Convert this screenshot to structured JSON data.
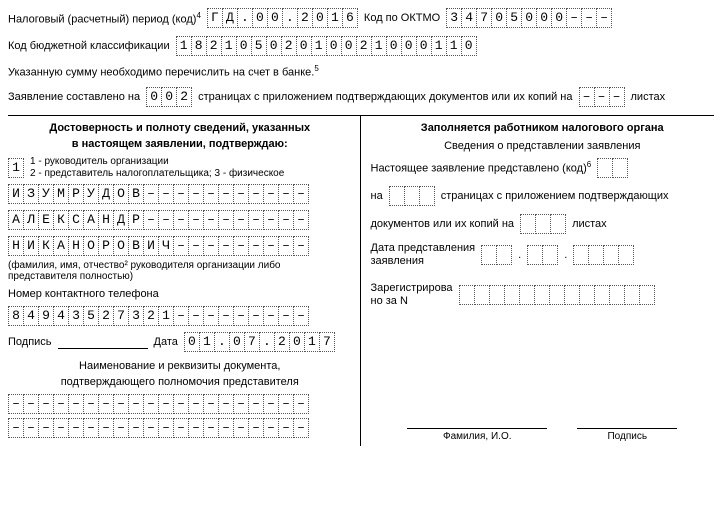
{
  "top": {
    "tax_period_label": "Налоговый (расчетный) период (код)",
    "tax_period_sup": "4",
    "tax_period_cells": [
      "Г",
      "Д",
      ".",
      "0",
      "0",
      ".",
      "2",
      "0",
      "1",
      "6"
    ],
    "oktmo_label": "Код по ОКТМО",
    "oktmo_cells": [
      "3",
      "4",
      "7",
      "0",
      "5",
      "0",
      "0",
      "0",
      "–",
      "–",
      "–"
    ],
    "kbk_label": "Код бюджетной классификации",
    "kbk_cells": [
      "1",
      "8",
      "2",
      "1",
      "0",
      "5",
      "0",
      "2",
      "0",
      "1",
      "0",
      "0",
      "2",
      "1",
      "0",
      "0",
      "0",
      "1",
      "1",
      "0"
    ],
    "transfer_note": "Указанную сумму необходимо перечислить на счет в банке.",
    "transfer_note_sup": "5",
    "pages_prefix": "Заявление составлено на",
    "pages_cells": [
      "0",
      "0",
      "2"
    ],
    "pages_mid": "страницах с приложением подтверждающих документов или их копий на",
    "sheets_cells": [
      "–",
      "–",
      "–"
    ],
    "pages_suffix": "листах"
  },
  "left": {
    "title1": "Достоверность и полноту сведений, указанных",
    "title2": "в настоящем заявлении, подтверждаю:",
    "type_cells": [
      "1"
    ],
    "type_note1": "1 - руководитель организации",
    "type_note2": "2 - представитель налогоплательщика; 3 - физическое",
    "surname": [
      "И",
      "З",
      "У",
      "М",
      "Р",
      "У",
      "Д",
      "О",
      "В",
      "–",
      "–",
      "–",
      "–",
      "–",
      "–",
      "–",
      "–",
      "–",
      "–",
      "–"
    ],
    "name": [
      "А",
      "Л",
      "Е",
      "К",
      "С",
      "А",
      "Н",
      "Д",
      "Р",
      "–",
      "–",
      "–",
      "–",
      "–",
      "–",
      "–",
      "–",
      "–",
      "–",
      "–"
    ],
    "patronymic": [
      "Н",
      "И",
      "К",
      "А",
      "Н",
      "О",
      "Р",
      "О",
      "В",
      "И",
      "Ч",
      "–",
      "–",
      "–",
      "–",
      "–",
      "–",
      "–",
      "–",
      "–"
    ],
    "fio_note": "(фамилия, имя, отчество² руководителя организации либо представителя полностью)",
    "phone_label": "Номер контактного телефона",
    "phone": [
      "8",
      "4",
      "9",
      "4",
      "3",
      "5",
      "2",
      "7",
      "3",
      "2",
      "1",
      "–",
      "–",
      "–",
      "–",
      "–",
      "–",
      "–",
      "–",
      "–"
    ],
    "sign_label": "Подпись",
    "date_label": "Дата",
    "date": [
      "0",
      "1",
      ".",
      "0",
      "7",
      ".",
      "2",
      "0",
      "1",
      "7"
    ],
    "doc_title1": "Наименование и реквизиты документа,",
    "doc_title2": "подтверждающего полномочия представителя",
    "doc_row": [
      "–",
      "–",
      "–",
      "–",
      "–",
      "–",
      "–",
      "–",
      "–",
      "–",
      "–",
      "–",
      "–",
      "–",
      "–",
      "–",
      "–",
      "–",
      "–",
      "–"
    ]
  },
  "right": {
    "title": "Заполняется работником налогового органа",
    "sub": "Сведения о представлении заявления",
    "line1_pre": "Настоящее заявление представлено (код)",
    "line1_sup": "6",
    "line1_cells": [
      "",
      ""
    ],
    "line2_pre": "на",
    "line2_cells": [
      "",
      "",
      ""
    ],
    "line2_post": "страницах с приложением подтверждающих",
    "line3_pre": "документов или их копий на",
    "line3_cells": [
      "",
      "",
      ""
    ],
    "line3_post": "листах",
    "date_label1": "Дата представления",
    "date_label2": "заявления",
    "date_cells_d": [
      "",
      ""
    ],
    "date_cells_m": [
      "",
      ""
    ],
    "date_cells_y": [
      "",
      "",
      "",
      ""
    ],
    "dot": ".",
    "reg_label1": "Зарегистрирова",
    "reg_label2": "но за N",
    "reg_cells": [
      "",
      "",
      "",
      "",
      "",
      "",
      "",
      "",
      "",
      "",
      "",
      "",
      ""
    ],
    "fio_label": "Фамилия, И.О.",
    "sign_label": "Подпись"
  }
}
